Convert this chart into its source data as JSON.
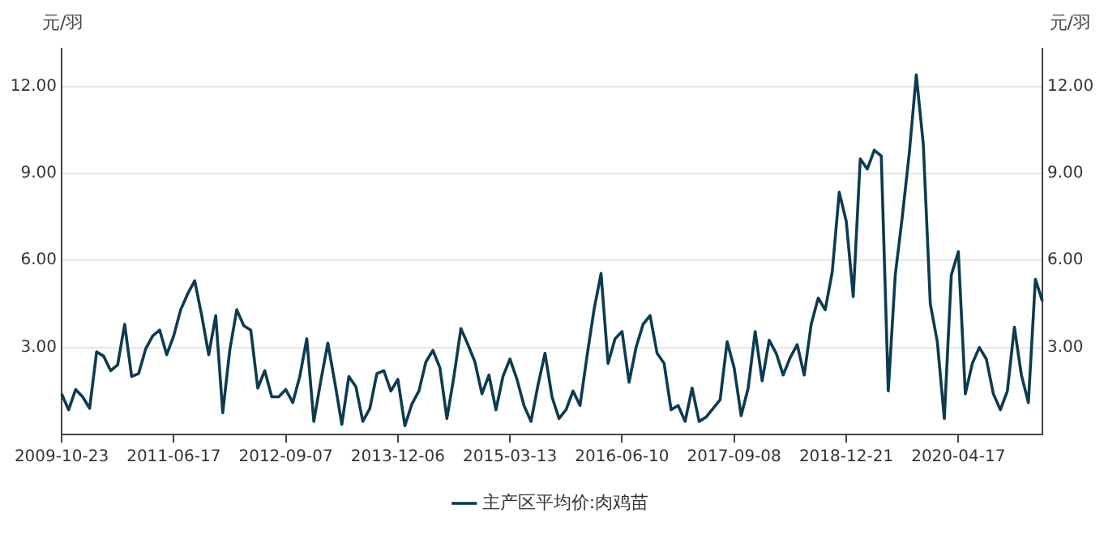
{
  "chart_data": {
    "type": "line",
    "ylabel": "元/羽",
    "y2label": "元/羽",
    "categories": [
      "2009-10-23",
      null,
      null,
      null,
      null,
      null,
      null,
      null,
      null,
      null,
      null,
      null,
      null,
      null,
      null,
      null,
      "2011-06-17",
      null,
      null,
      null,
      null,
      null,
      null,
      null,
      null,
      null,
      null,
      null,
      null,
      null,
      null,
      null,
      "2012-09-07",
      null,
      null,
      null,
      null,
      null,
      null,
      null,
      null,
      null,
      null,
      null,
      null,
      null,
      null,
      null,
      "2013-12-06",
      null,
      null,
      null,
      null,
      null,
      null,
      null,
      null,
      null,
      null,
      null,
      null,
      null,
      null,
      null,
      "2015-03-13",
      null,
      null,
      null,
      null,
      null,
      null,
      null,
      null,
      null,
      null,
      null,
      null,
      null,
      null,
      null,
      "2016-06-10",
      null,
      null,
      null,
      null,
      null,
      null,
      null,
      null,
      null,
      null,
      null,
      null,
      null,
      null,
      null,
      "2017-09-08",
      null,
      null,
      null,
      null,
      null,
      null,
      null,
      null,
      null,
      null,
      null,
      null,
      null,
      null,
      null,
      "2018-12-21",
      null,
      null,
      null,
      null,
      null,
      null,
      null,
      null,
      null,
      null,
      null,
      null,
      null,
      null,
      null,
      "2020-04-17",
      null,
      null,
      null,
      null,
      null,
      null,
      null,
      null,
      null,
      null,
      null,
      null
    ],
    "ylim": [
      0,
      13.3
    ],
    "yticks": [
      {
        "value": 3,
        "label": "3.00"
      },
      {
        "value": 6,
        "label": "6.00"
      },
      {
        "value": 9,
        "label": "9.00"
      },
      {
        "value": 12,
        "label": "12.00"
      }
    ],
    "y2lim": [
      0,
      13.3
    ],
    "y2ticks": [
      {
        "value": 3,
        "label": "3.00"
      },
      {
        "value": 6,
        "label": "6.00"
      },
      {
        "value": 9,
        "label": "9.00"
      },
      {
        "value": 12,
        "label": "12.00"
      }
    ],
    "grid": "y",
    "legend": "bottom",
    "marker": "none",
    "line_style": "solid",
    "series": [
      {
        "name": "主产区平均价:肉鸡苗",
        "color": "#0d3b4f",
        "values": [
          1.4,
          0.85,
          1.55,
          1.3,
          0.9,
          2.85,
          2.7,
          2.2,
          2.4,
          3.8,
          2.0,
          2.1,
          2.95,
          3.4,
          3.6,
          2.75,
          3.4,
          4.3,
          4.85,
          5.3,
          4.1,
          2.75,
          4.1,
          0.75,
          2.9,
          4.3,
          3.75,
          3.6,
          1.6,
          2.2,
          1.3,
          1.3,
          1.55,
          1.1,
          2.0,
          3.3,
          0.45,
          1.85,
          3.15,
          1.8,
          0.35,
          2.0,
          1.65,
          0.45,
          0.9,
          2.1,
          2.2,
          1.5,
          1.9,
          0.3,
          1.05,
          1.5,
          2.5,
          2.9,
          2.3,
          0.55,
          2.0,
          3.65,
          3.1,
          2.5,
          1.4,
          2.05,
          0.85,
          2.0,
          2.6,
          1.9,
          1.0,
          0.45,
          1.7,
          2.8,
          1.3,
          0.55,
          0.85,
          1.5,
          1.0,
          2.7,
          4.3,
          5.55,
          2.45,
          3.3,
          3.55,
          1.8,
          3.0,
          3.8,
          4.1,
          2.8,
          2.45,
          0.85,
          1.0,
          0.45,
          1.6,
          0.45,
          0.6,
          0.9,
          1.2,
          3.2,
          2.3,
          0.65,
          1.6,
          3.55,
          1.85,
          3.25,
          2.8,
          2.05,
          2.65,
          3.1,
          2.05,
          3.8,
          4.7,
          4.3,
          5.6,
          8.35,
          7.35,
          4.75,
          9.5,
          9.15,
          9.8,
          9.6,
          1.5,
          5.5,
          7.5,
          9.7,
          12.4,
          10.0,
          4.5,
          3.2,
          0.55,
          5.5,
          6.3,
          1.4,
          2.45,
          3.0,
          2.6,
          1.4,
          0.85,
          1.5,
          3.7,
          2.05,
          1.1,
          5.35,
          4.6
        ]
      }
    ]
  }
}
